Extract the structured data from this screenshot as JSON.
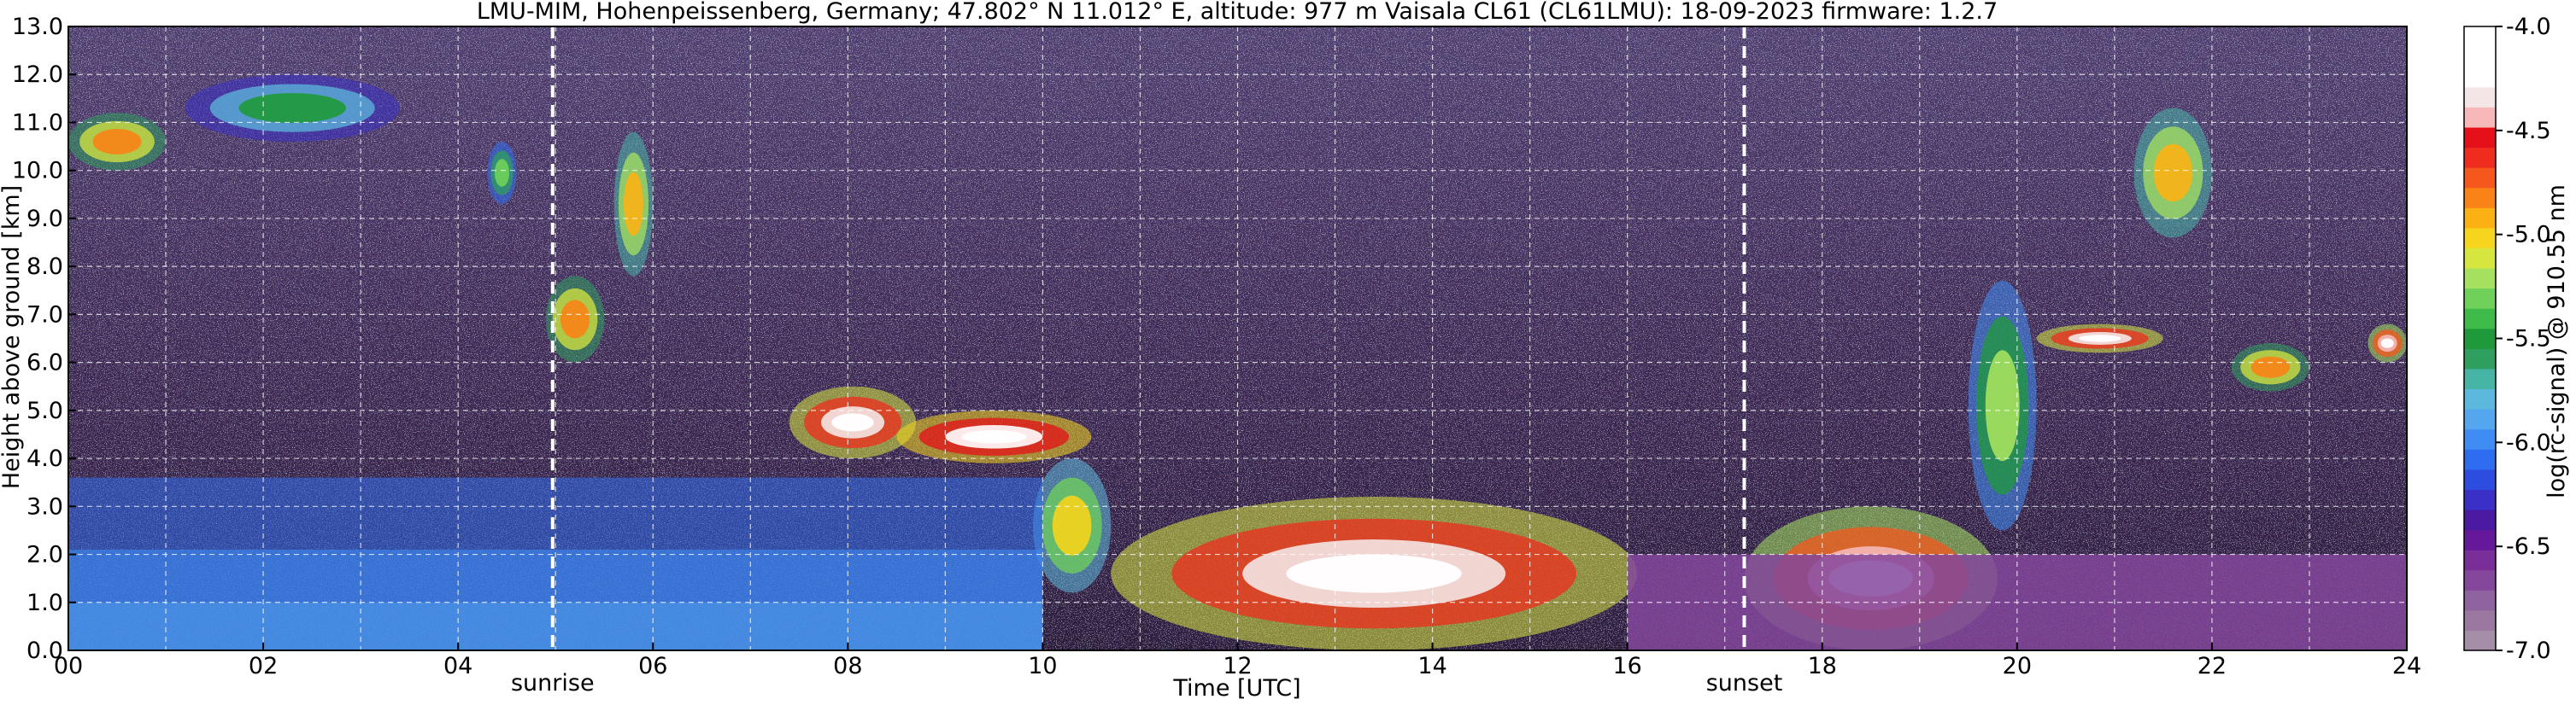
{
  "chart_data": {
    "type": "heatmap",
    "title": "LMU-MIM, Hohenpeissenberg, Germany; 47.802° N 11.012° E, altitude: 977 m    Vaisala CL61 (CL61LMU): 18-09-2023    firmware: 1.2.7",
    "xlabel": "Time [UTC]",
    "ylabel": "Height above ground [km]",
    "xlim": [
      0,
      24
    ],
    "ylim": [
      0,
      13
    ],
    "x_ticks": [
      "00",
      "02",
      "04",
      "06",
      "08",
      "10",
      "12",
      "14",
      "16",
      "18",
      "20",
      "22",
      "24"
    ],
    "y_ticks": [
      "0.0",
      "1.0",
      "2.0",
      "3.0",
      "4.0",
      "5.0",
      "6.0",
      "7.0",
      "8.0",
      "9.0",
      "10.0",
      "11.0",
      "12.0",
      "13.0"
    ],
    "grid": true,
    "annotations": [
      {
        "label": "sunrise",
        "x": 4.97
      },
      {
        "label": "sunset",
        "x": 17.2
      }
    ],
    "colorbar": {
      "label": "log(rc-signal) @ 910.55 nm",
      "range": [
        -7.0,
        -4.0
      ],
      "ticks": [
        "-4.0",
        "-4.5",
        "-5.0",
        "-5.5",
        "-6.0",
        "-6.5",
        "-7.0"
      ],
      "colors": [
        "#a58fa8",
        "#9a78a0",
        "#8f63a0",
        "#84479c",
        "#7a2f98",
        "#66189a",
        "#4a1aa3",
        "#3a2fc6",
        "#2d4ce0",
        "#2f6df0",
        "#3f8cf4",
        "#54a6ef",
        "#5cb8dc",
        "#47b5a5",
        "#2f9f5f",
        "#1f9a3a",
        "#3fbb49",
        "#6fd159",
        "#a5e15f",
        "#d7e63f",
        "#f5d51d",
        "#fbb114",
        "#f98316",
        "#f5571c",
        "#ef2c1e",
        "#e5101a",
        "#f6b8b8",
        "#f4e6e6",
        "#ffffff",
        "#ffffff",
        "#ffffff"
      ]
    },
    "features": [
      {
        "type": "cloud",
        "x": [
          0.0,
          1.0
        ],
        "y": [
          10.0,
          11.2
        ],
        "level": -4.8
      },
      {
        "type": "cloud",
        "x": [
          1.2,
          3.4
        ],
        "y": [
          10.6,
          12.0
        ],
        "level": -5.5
      },
      {
        "type": "cloud",
        "x": [
          4.3,
          4.6
        ],
        "y": [
          9.3,
          10.6
        ],
        "level": -5.3
      },
      {
        "type": "cloud",
        "x": [
          5.6,
          6.0
        ],
        "y": [
          7.8,
          10.8
        ],
        "level": -4.9
      },
      {
        "type": "cloud",
        "x": [
          4.9,
          5.5
        ],
        "y": [
          6.0,
          7.8
        ],
        "level": -4.8
      },
      {
        "type": "cloud",
        "x": [
          7.4,
          8.7
        ],
        "y": [
          4.0,
          5.5
        ],
        "level": -4.3
      },
      {
        "type": "cloud",
        "x": [
          8.5,
          10.5
        ],
        "y": [
          3.9,
          5.0
        ],
        "level": -4.2
      },
      {
        "type": "cloud",
        "x": [
          9.9,
          10.7
        ],
        "y": [
          1.2,
          4.0
        ],
        "level": -5.0
      },
      {
        "type": "cloud",
        "x": [
          10.7,
          16.1
        ],
        "y": [
          0.0,
          3.2
        ],
        "level": -4.3
      },
      {
        "type": "cloud",
        "x": [
          17.2,
          19.8
        ],
        "y": [
          0.0,
          3.0
        ],
        "level": -4.4
      },
      {
        "type": "cloud",
        "x": [
          19.5,
          20.2
        ],
        "y": [
          2.5,
          7.7
        ],
        "level": -5.2
      },
      {
        "type": "cloud",
        "x": [
          20.2,
          21.5
        ],
        "y": [
          6.2,
          6.8
        ],
        "level": -4.3
      },
      {
        "type": "cloud",
        "x": [
          21.2,
          22.0
        ],
        "y": [
          8.6,
          11.3
        ],
        "level": -4.9
      },
      {
        "type": "cloud",
        "x": [
          22.2,
          23.0
        ],
        "y": [
          5.4,
          6.4
        ],
        "level": -4.8
      },
      {
        "type": "cloud",
        "x": [
          23.6,
          24.0
        ],
        "y": [
          6.0,
          6.8
        ],
        "level": -4.4
      },
      {
        "type": "aerosol-layer",
        "x": [
          0.0,
          10.0
        ],
        "y": [
          0.0,
          3.6
        ],
        "level": -6.1
      },
      {
        "type": "boundary-layer",
        "x": [
          16.0,
          24.0
        ],
        "y": [
          0.0,
          2.0
        ],
        "level": -6.7
      },
      {
        "type": "noise",
        "x": [
          0.0,
          24.0
        ],
        "y": [
          3.0,
          13.0
        ],
        "level": -6.6
      }
    ]
  }
}
